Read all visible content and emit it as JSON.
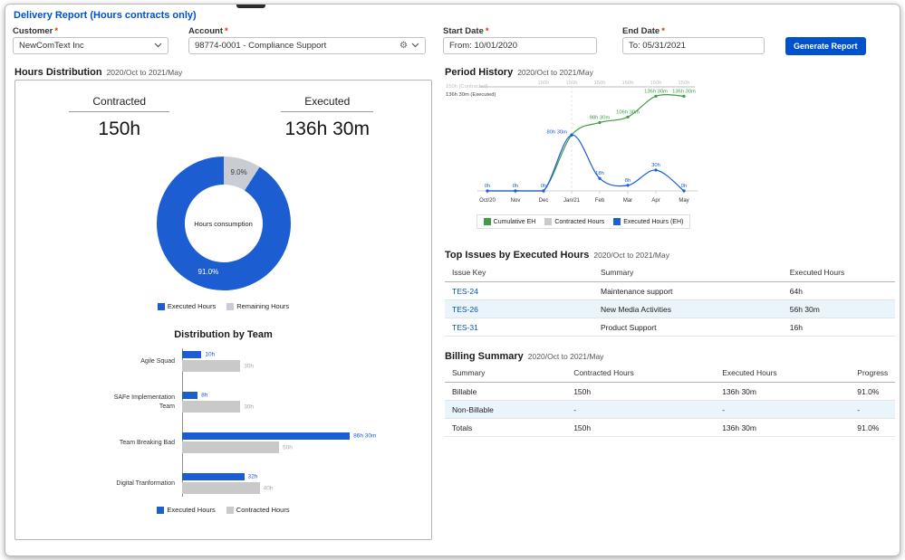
{
  "page": {
    "title": "Delivery Report (Hours contracts only)"
  },
  "filters": {
    "required_mark": "*",
    "customer": {
      "label": "Customer",
      "value": "NewComText Inc"
    },
    "account": {
      "label": "Account",
      "value": "98774-0001 - Compliance Support"
    },
    "start_date": {
      "label": "Start Date",
      "value": "From: 10/01/2020"
    },
    "end_date": {
      "label": "End Date",
      "value": "To: 05/31/2021"
    },
    "generate_button": "Generate Report"
  },
  "hours_distribution": {
    "title": "Hours Distribution",
    "period": "2020/Oct to 2021/May",
    "contracted": {
      "label": "Contracted",
      "value": "150h"
    },
    "executed": {
      "label": "Executed",
      "value": "136h 30m"
    },
    "donut": {
      "type": "pie",
      "center_label": "Hours consumption",
      "slices": [
        {
          "name": "Executed Hours",
          "pct": 91.0,
          "label": "91.0%",
          "color": "#1d5dd2"
        },
        {
          "name": "Remaining Hours",
          "pct": 9.0,
          "label": "9.0%",
          "color": "#c9cdd3"
        }
      ],
      "legend": [
        "Executed Hours",
        "Remaining Hours"
      ]
    },
    "team_chart": {
      "type": "bar",
      "title": "Distribution by Team",
      "teams": [
        {
          "name": "Agile Squad",
          "executed_hours": 10,
          "executed_label": "10h",
          "contracted_hours": 30,
          "contracted_label": "30h"
        },
        {
          "name": "SAFe Implementation Team",
          "executed_hours": 8,
          "executed_label": "8h",
          "contracted_hours": 30,
          "contracted_label": "30h"
        },
        {
          "name": "Team Breaking Bad",
          "executed_hours": 86.5,
          "executed_label": "86h 30m",
          "contracted_hours": 50,
          "contracted_label": "50h"
        },
        {
          "name": "Digital Tranformation",
          "executed_hours": 32,
          "executed_label": "32h",
          "contracted_hours": 40,
          "contracted_label": "40h"
        }
      ],
      "legend": [
        "Executed Hours",
        "Contracted Hours"
      ]
    }
  },
  "period_history": {
    "type": "line",
    "title": "Period History",
    "period": "2020/Oct to 2021/May",
    "axis_labels": {
      "contracted": "150h (Contracted)",
      "executed": "136h 30m (Executed)"
    },
    "months": [
      "Oct/20",
      "Nov",
      "Dec",
      "Jan/21",
      "Feb",
      "Mar",
      "Apr",
      "May"
    ],
    "ymax": 160,
    "series": [
      {
        "name": "Cumulative EH",
        "color": "#3f9c44",
        "values": [
          0,
          0,
          0,
          80.5,
          98.5,
          106.5,
          136.5,
          136.5
        ],
        "labels": [
          "",
          "",
          "",
          "",
          "98h 30m",
          "106h 30m",
          "136h 30m",
          "136h 30m"
        ]
      },
      {
        "name": "Contracted Hours",
        "color": "#c9c9c9",
        "values": [
          150,
          150,
          150,
          150,
          150,
          150,
          150,
          150
        ],
        "labels": [
          "",
          "",
          "150h",
          "150h",
          "150h",
          "150h",
          "150h",
          "150h"
        ]
      },
      {
        "name": "Executed Hours (EH)",
        "color": "#1d5dd2",
        "values": [
          0,
          0,
          0,
          80.5,
          18,
          8,
          30,
          0
        ],
        "labels": [
          "0h",
          "0h",
          "0h",
          "80h 30m",
          "18h",
          "8h",
          "30h",
          "0h"
        ]
      }
    ],
    "legend": [
      "Cumulative EH",
      "Contracted Hours",
      "Executed Hours (EH)"
    ]
  },
  "top_issues": {
    "title": "Top Issues by Executed Hours",
    "period": "2020/Oct to 2021/May",
    "columns": [
      "Issue Key",
      "Summary",
      "Executed Hours"
    ],
    "rows": [
      {
        "issue_key": "TES-24",
        "summary": "Maintenance support",
        "executed": "64h"
      },
      {
        "issue_key": "TES-26",
        "summary": "New Media Activities",
        "executed": "56h 30m"
      },
      {
        "issue_key": "TES-31",
        "summary": "Product Support",
        "executed": "16h"
      }
    ]
  },
  "billing_summary": {
    "title": "Billing Summary",
    "period": "2020/Oct to 2021/May",
    "columns": [
      "Summary",
      "Contracted Hours",
      "Executed Hours",
      "Progress"
    ],
    "rows": [
      [
        "Billable",
        "150h",
        "136h 30m",
        "91.0%"
      ],
      [
        "Non-Billable",
        "-",
        "-",
        "-"
      ],
      [
        "Totals",
        "150h",
        "136h 30m",
        "91.0%"
      ]
    ]
  },
  "colors": {
    "accent": "#0052CC",
    "chart_blue": "#1d5dd2",
    "chart_gray": "#c9c9c9",
    "chart_green": "#3f9c44",
    "row_alt": "#eaf4fb",
    "required_asterisk": "#de350b"
  }
}
